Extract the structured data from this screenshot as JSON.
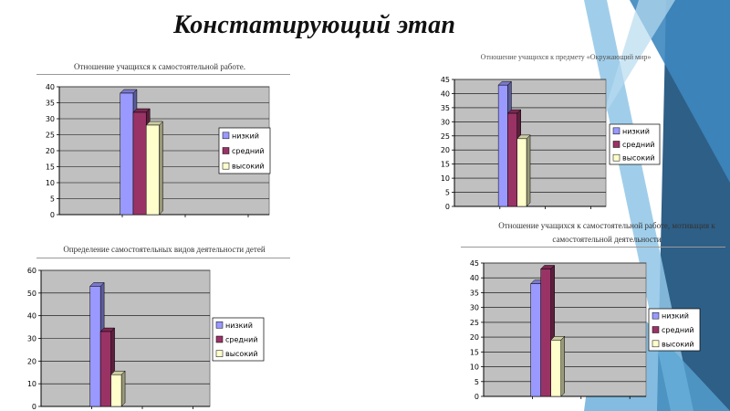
{
  "slide": {
    "title": "Констатирующий этап",
    "colors": {
      "accent_dark": "#2e5f87",
      "accent_mid": "#3d87bf",
      "accent_light": "#8fc6e6",
      "plot_bg": "#c0c0c0",
      "low": "#9999ff",
      "mid": "#993366",
      "high": "#ffffcc"
    }
  },
  "chart_data": [
    {
      "type": "bar",
      "title": "Отношение учащихся к самостоятельной работе.",
      "categories": [
        ""
      ],
      "series": [
        {
          "name": "низкий",
          "values": [
            38
          ]
        },
        {
          "name": "средний",
          "values": [
            32
          ]
        },
        {
          "name": "высокий",
          "values": [
            28
          ]
        }
      ],
      "ylim": [
        0,
        40
      ],
      "yticks": [
        "0",
        "5",
        "10",
        "15",
        "20",
        "25",
        "30",
        "35",
        "40"
      ],
      "grid": true,
      "legend": "right"
    },
    {
      "type": "bar",
      "title": "Отношение учащихся к предмету «Окружающий мир»",
      "categories": [
        ""
      ],
      "series": [
        {
          "name": "низкий",
          "values": [
            43
          ]
        },
        {
          "name": "средний",
          "values": [
            33
          ]
        },
        {
          "name": "высокий",
          "values": [
            24
          ]
        }
      ],
      "ylim": [
        0,
        45
      ],
      "yticks": [
        "0",
        "5",
        "10",
        "15",
        "20",
        "25",
        "30",
        "35",
        "40",
        "45"
      ],
      "grid": true,
      "legend": "right"
    },
    {
      "type": "bar",
      "title": "Определение самостоятельных видов деятельности детей",
      "categories": [
        ""
      ],
      "series": [
        {
          "name": "низкий",
          "values": [
            53
          ]
        },
        {
          "name": "средний",
          "values": [
            33
          ]
        },
        {
          "name": "высокий",
          "values": [
            14
          ]
        }
      ],
      "ylim": [
        0,
        60
      ],
      "yticks": [
        "0",
        "10",
        "20",
        "30",
        "40",
        "50",
        "60"
      ],
      "grid": true,
      "legend": "right"
    },
    {
      "type": "bar",
      "title": "Отношение учащихся к самостоятельной работе, мотивация к самостоятельной деятельности",
      "categories": [
        ""
      ],
      "series": [
        {
          "name": "низкий",
          "values": [
            38
          ]
        },
        {
          "name": "средний",
          "values": [
            43
          ]
        },
        {
          "name": "высокий",
          "values": [
            19
          ]
        }
      ],
      "ylim": [
        0,
        45
      ],
      "yticks": [
        "0",
        "5",
        "10",
        "15",
        "20",
        "25",
        "30",
        "35",
        "40",
        "45"
      ],
      "grid": true,
      "legend": "right"
    }
  ]
}
